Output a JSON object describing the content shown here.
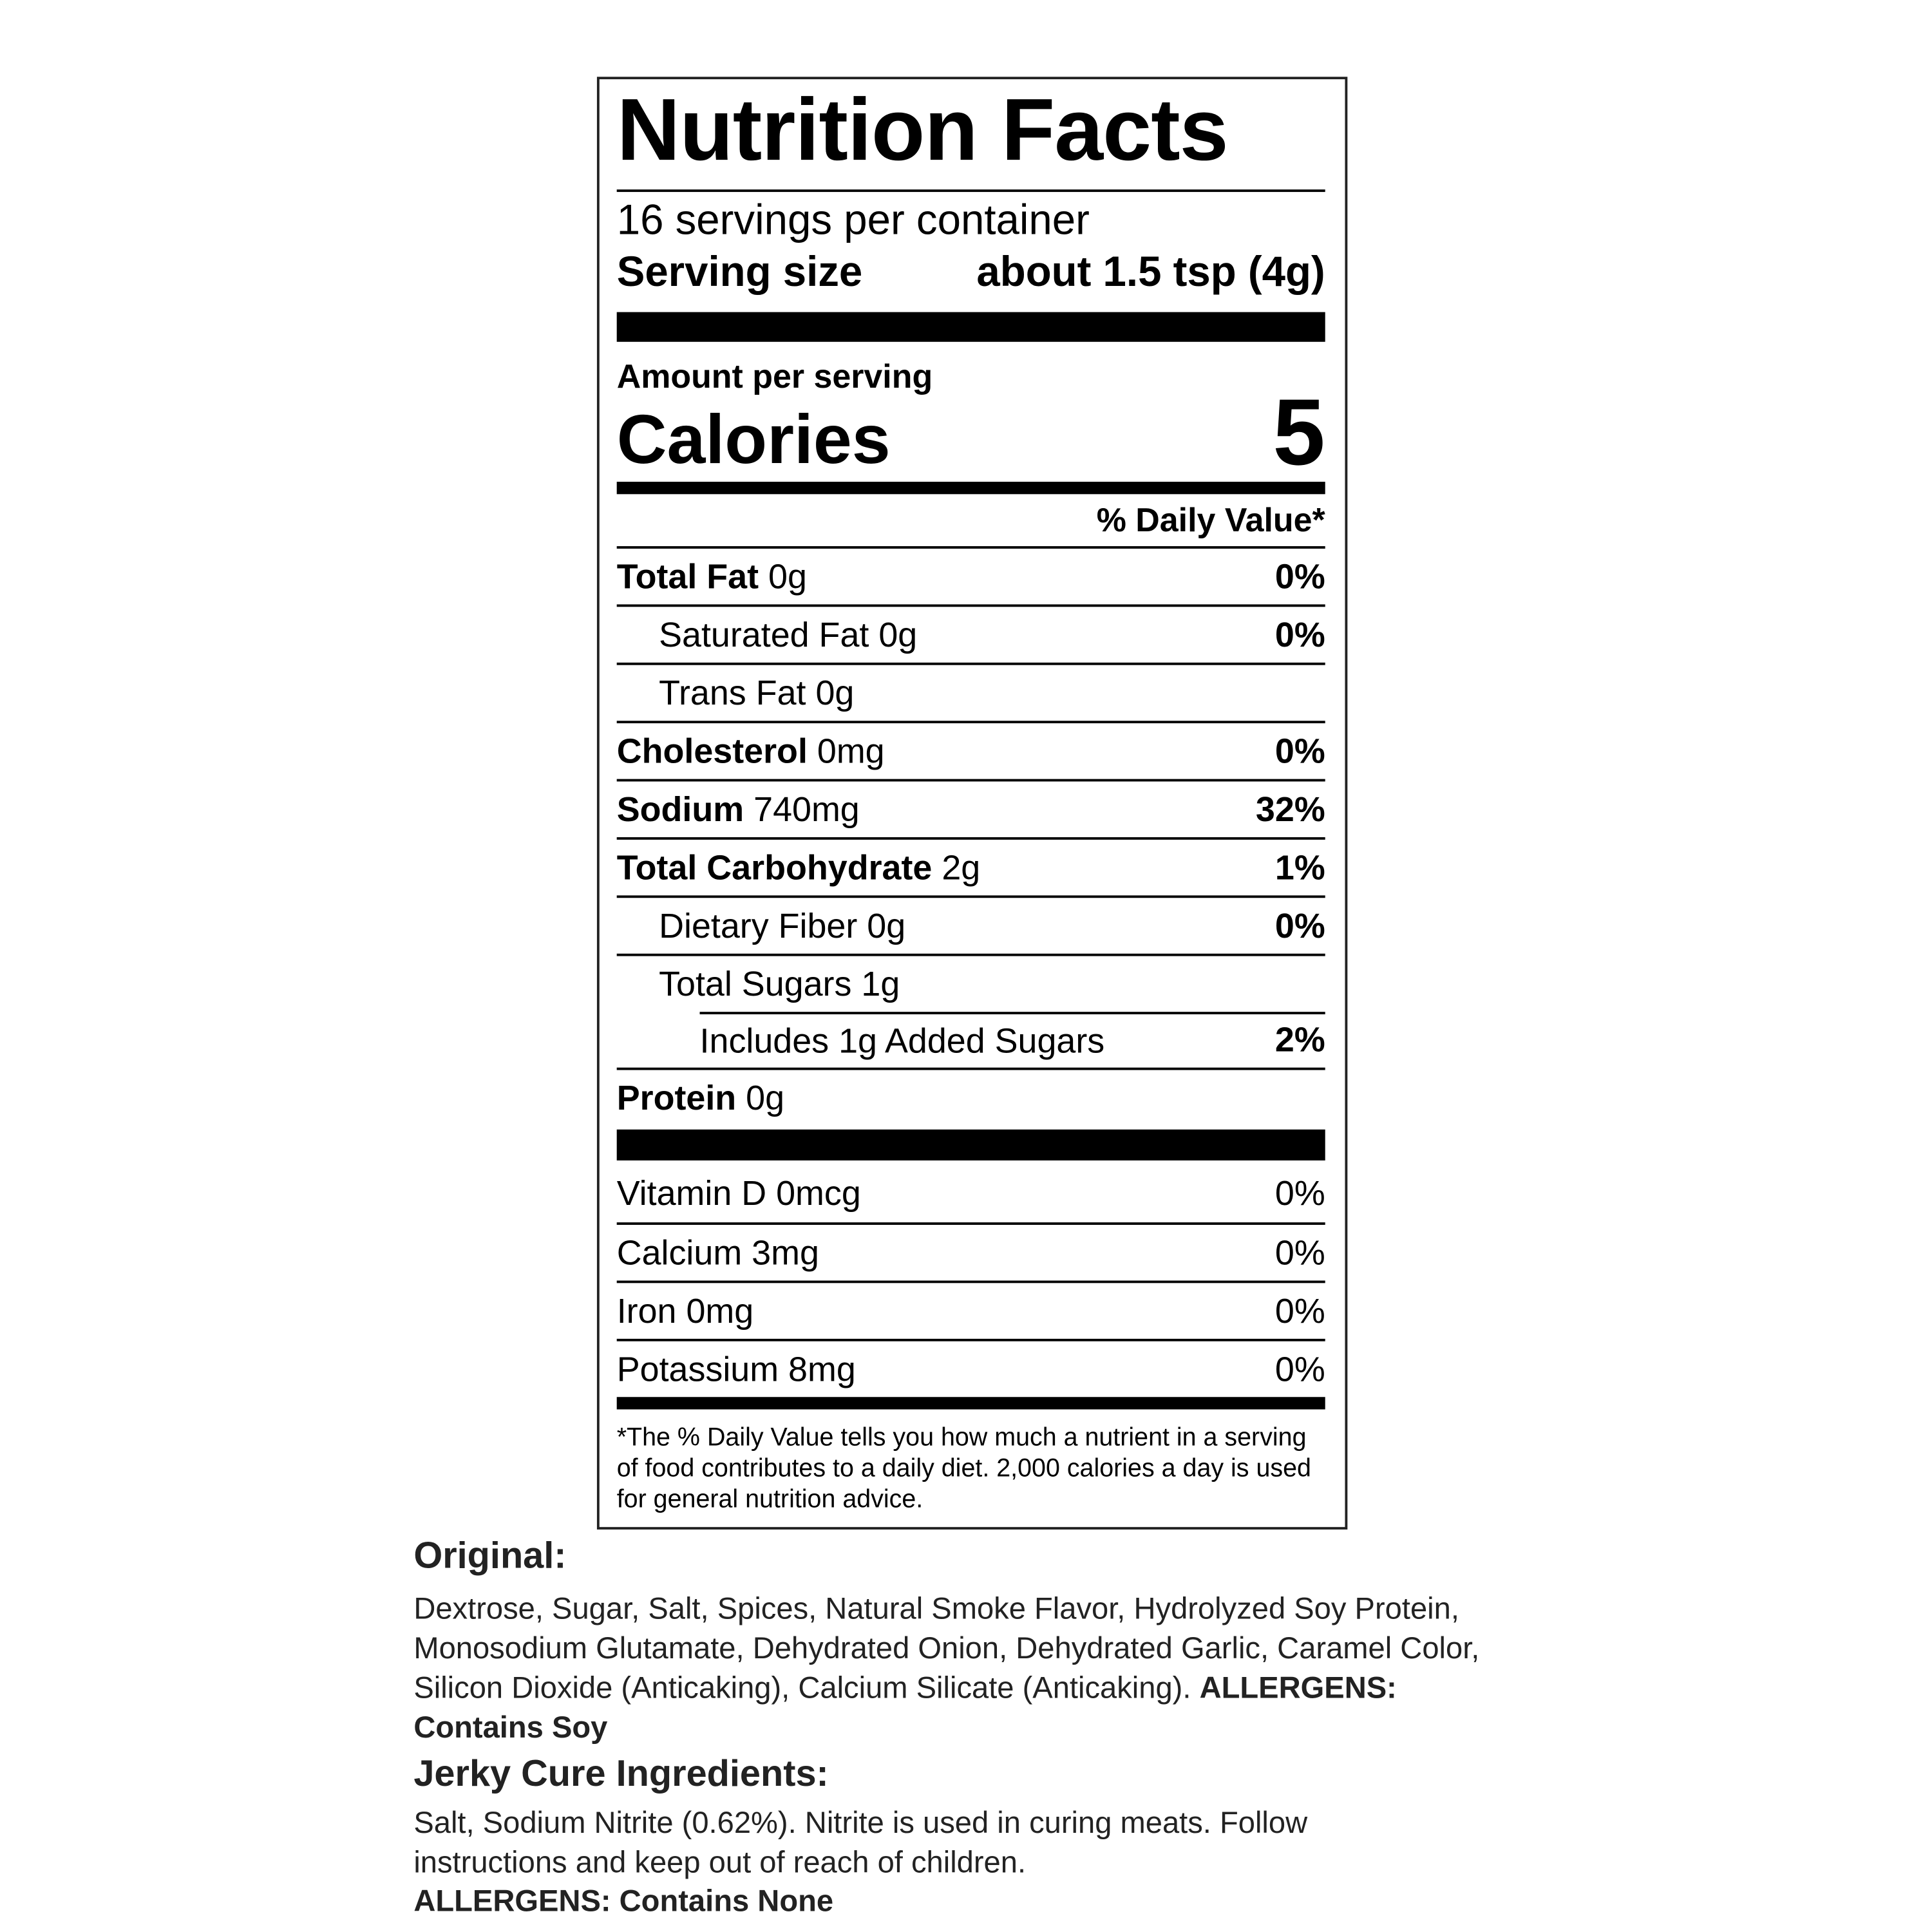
{
  "label": {
    "title": "Nutrition Facts",
    "servings_per_container": "16 servings per container",
    "serving_size_label": "Serving size",
    "serving_size_value": "about 1.5 tsp (4g)",
    "amount_per_serving": "Amount per serving",
    "calories_label": "Calories",
    "calories_value": "5",
    "daily_value_header": "% Daily Value*",
    "nutrients": [
      {
        "name": "Total Fat",
        "amount": "0g",
        "dv": "0%"
      },
      {
        "name": "Saturated Fat",
        "amount": "0g",
        "dv": "0%"
      },
      {
        "name": "Trans Fat",
        "amount": "0g",
        "dv": ""
      },
      {
        "name": "Cholesterol",
        "amount": "0mg",
        "dv": "0%"
      },
      {
        "name": "Sodium",
        "amount": "740mg",
        "dv": "32%"
      },
      {
        "name": "Total Carbohydrate",
        "amount": "2g",
        "dv": "1%"
      },
      {
        "name": "Dietary Fiber",
        "amount": "0g",
        "dv": "0%"
      },
      {
        "name": "Total Sugars",
        "amount": "1g",
        "dv": ""
      },
      {
        "name": "Includes 1g Added Sugars",
        "amount": "",
        "dv": "2%"
      },
      {
        "name": "Protein",
        "amount": "0g",
        "dv": ""
      }
    ],
    "vitamins": [
      {
        "text": "Vitamin D 0mcg",
        "dv": "0%"
      },
      {
        "text": "Calcium 3mg",
        "dv": "0%"
      },
      {
        "text": "Iron 0mg",
        "dv": "0%"
      },
      {
        "text": "Potassium 8mg",
        "dv": "0%"
      }
    ],
    "footnote": "*The % Daily Value tells you how much a nutrient in a serving of food contributes to a daily diet. 2,000 calories a day is used for general nutrition advice."
  },
  "ingredients": {
    "original_heading": "Original:",
    "original_text": "Dextrose, Sugar, Salt, Spices, Natural Smoke Flavor, Hydrolyzed Soy Protein, Monosodium Glutamate, Dehydrated Onion, Dehydrated Garlic, Caramel Color, Silicon Dioxide (Anticaking), Calcium Silicate (Anticaking).",
    "original_allergens": "ALLERGENS: Contains Soy",
    "cure_heading": "Jerky Cure Ingredients:",
    "cure_text": "Salt, Sodium Nitrite (0.62%). Nitrite is used in curing meats. Follow instructions and keep out of reach of children.",
    "cure_allergens": "ALLERGENS: Contains None"
  }
}
